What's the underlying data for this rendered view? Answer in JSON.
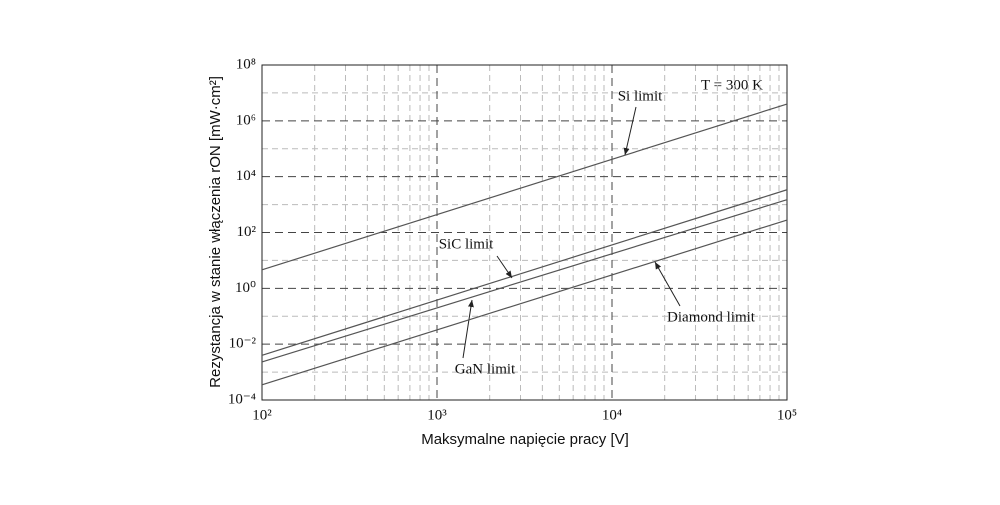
{
  "chart_data": {
    "type": "line",
    "xlabel": "Maksymalne napięcie pracy [V]",
    "ylabel": "Rezystancja w stanie włączenia rON [mW·cm²]",
    "annotation": "T = 300 K",
    "x": [
      100,
      100000
    ],
    "series": [
      {
        "name": "Si limit",
        "color": "#555555",
        "values": [
          4.6,
          4000000
        ]
      },
      {
        "name": "SiC limit",
        "color": "#555555",
        "values": [
          0.004,
          3400
        ]
      },
      {
        "name": "GaN limit",
        "color": "#555555",
        "values": [
          0.0023,
          1500
        ]
      },
      {
        "name": "Diamond limit",
        "color": "#555555",
        "values": [
          0.00035,
          280
        ]
      }
    ],
    "xscale": "log",
    "yscale": "log",
    "xlim": [
      100,
      100000
    ],
    "ylim": [
      0.0001,
      100000000
    ],
    "xticks": [
      {
        "value": 100,
        "label": "10²"
      },
      {
        "value": 1000,
        "label": "10³"
      },
      {
        "value": 10000,
        "label": "10⁴"
      },
      {
        "value": 100000,
        "label": "10⁵"
      }
    ],
    "yticks": [
      {
        "value": 0.0001,
        "label": "10⁻⁴"
      },
      {
        "value": 0.01,
        "label": "10⁻²"
      },
      {
        "value": 1,
        "label": "10⁰"
      },
      {
        "value": 100,
        "label": "10²"
      },
      {
        "value": 10000,
        "label": "10⁴"
      },
      {
        "value": 1000000,
        "label": "10⁶"
      },
      {
        "value": 100000000,
        "label": "10⁸"
      }
    ],
    "grid": true
  }
}
